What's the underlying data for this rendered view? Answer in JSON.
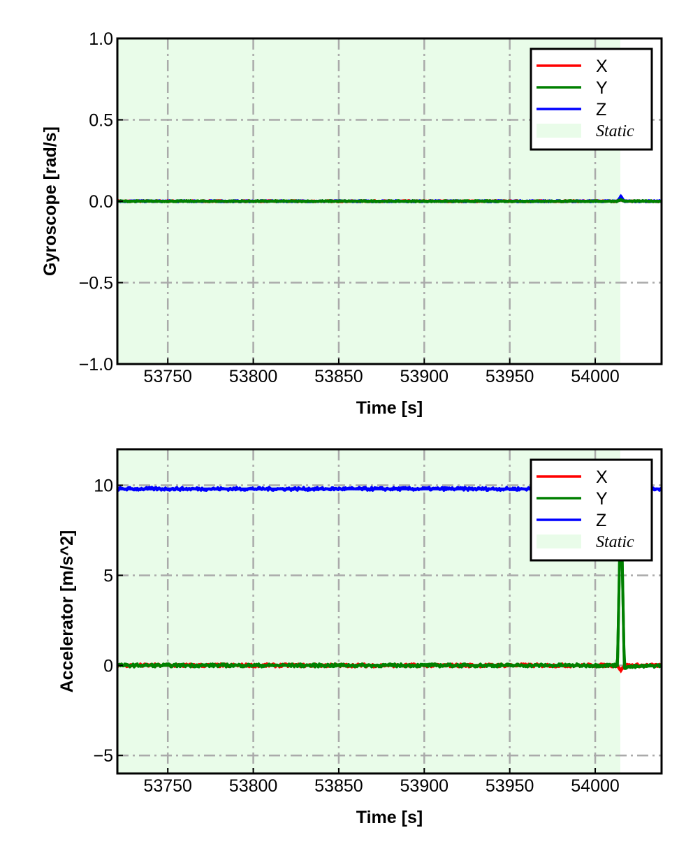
{
  "chart_data": [
    {
      "type": "line",
      "title": "",
      "xlabel": "Time [s]",
      "ylabel": "Gyroscope [rad/s]",
      "xlim": [
        53720.5,
        54038.8
      ],
      "ylim": [
        -1.0,
        1.0
      ],
      "xticks": [
        53750,
        53800,
        53850,
        53900,
        53950,
        54000
      ],
      "xtick_labels": [
        "53750",
        "53800",
        "53850",
        "53900",
        "53950",
        "54000"
      ],
      "yticks": [
        1.0,
        0.5,
        0.0,
        -0.5,
        -1.0
      ],
      "ytick_labels": [
        "1.0",
        "0.5",
        "0.0",
        "−0.5",
        "−1.0"
      ],
      "grid": true,
      "legend_position": "top-right",
      "static_region": [
        53720.5,
        54014.7
      ],
      "series": [
        {
          "name": "X",
          "color": "#ff0000",
          "x": [
            53720.5,
            54013,
            54015,
            54017,
            54038.8
          ],
          "y": [
            0.0,
            0.0,
            0.01,
            0.0,
            0.0
          ]
        },
        {
          "name": "Y",
          "color": "#008000",
          "x": [
            53720.5,
            54013,
            54015,
            54017,
            54038.8
          ],
          "y": [
            0.0,
            0.0,
            0.01,
            0.0,
            0.0
          ]
        },
        {
          "name": "Z",
          "color": "#0000ff",
          "x": [
            53720.5,
            54013,
            54015,
            54017,
            54038.8
          ],
          "y": [
            0.0,
            0.0,
            0.03,
            0.0,
            0.0
          ]
        }
      ],
      "legend": [
        "X",
        "Y",
        "Z",
        "Static"
      ]
    },
    {
      "type": "line",
      "title": "",
      "xlabel": "Time [s]",
      "ylabel": "Accelerator [m/s^2]",
      "xlim": [
        53720.5,
        54038.8
      ],
      "ylim": [
        -6,
        12
      ],
      "xticks": [
        53750,
        53800,
        53850,
        53900,
        53950,
        54000
      ],
      "xtick_labels": [
        "53750",
        "53800",
        "53850",
        "53900",
        "53950",
        "54000"
      ],
      "yticks": [
        10,
        5,
        0,
        -5
      ],
      "ytick_labels": [
        "10",
        "5",
        "0",
        "−5"
      ],
      "grid": true,
      "legend_position": "top-right",
      "static_region": [
        53720.5,
        54014.7
      ],
      "series": [
        {
          "name": "X",
          "color": "#ff0000",
          "x": [
            53720.5,
            54013,
            54015,
            54017,
            54038.8
          ],
          "y": [
            0.0,
            0.0,
            -0.3,
            0.0,
            0.0
          ]
        },
        {
          "name": "Y",
          "color": "#008000",
          "x": [
            53720.5,
            54013,
            54015,
            54017,
            54038.8
          ],
          "y": [
            0.0,
            0.0,
            9.5,
            -0.1,
            0.0
          ]
        },
        {
          "name": "Z",
          "color": "#0000ff",
          "x": [
            53720.5,
            54013,
            54015,
            54017,
            54038.8
          ],
          "y": [
            9.8,
            9.8,
            9.8,
            9.8,
            9.8
          ]
        }
      ],
      "legend": [
        "X",
        "Y",
        "Z",
        "Static"
      ]
    }
  ]
}
